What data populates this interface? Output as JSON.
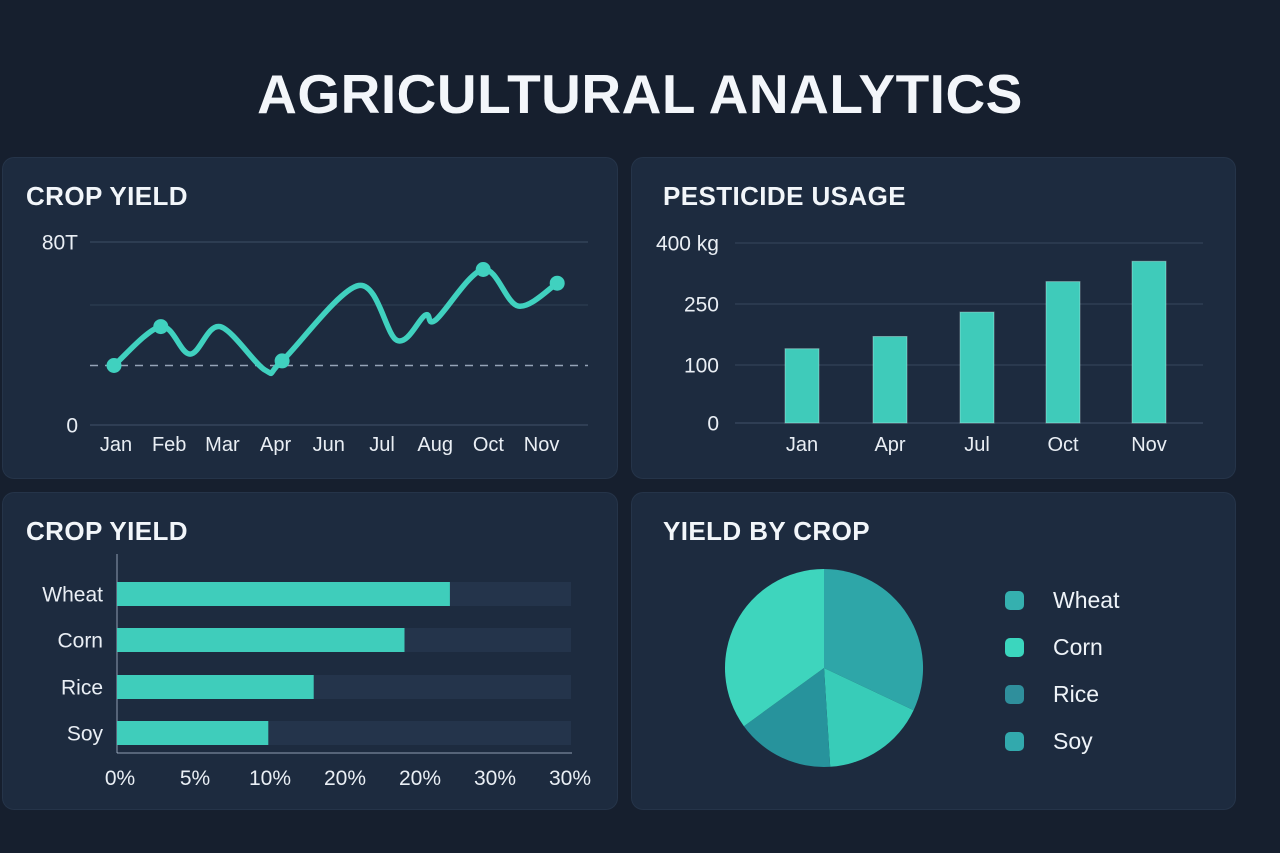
{
  "page": {
    "title": "AGRICULTURAL ANALYTICS",
    "background": "#161f2e",
    "card_background": "#1d2b3f",
    "accent_teal": "#3fcdbb",
    "text_color": "#eef2f7"
  },
  "chart_data": [
    {
      "type": "line",
      "title": "CROP YIELD",
      "unit": "T",
      "ylim": [
        0,
        80
      ],
      "y_tick_labels": [
        "80T",
        "0"
      ],
      "x_tick_labels": [
        "Jan",
        "Feb",
        "Mar",
        "Apr",
        "Jun",
        "Jul",
        "Aug",
        "Oct",
        "Nov"
      ],
      "reference_line_value": 26,
      "line_color": "#40d1bf",
      "grid": "horizontal",
      "points": [
        {
          "x": 0,
          "value": 26,
          "dot": true,
          "month": "Jan"
        },
        {
          "x": 0.88,
          "value": 43,
          "dot": true,
          "month": "Feb"
        },
        {
          "x": 1.43,
          "value": 31,
          "dot": false
        },
        {
          "x": 1.99,
          "value": 43,
          "dot": false,
          "month": "Mar"
        },
        {
          "x": 2.84,
          "value": 24,
          "dot": false
        },
        {
          "x": 3.16,
          "value": 28,
          "dot": true,
          "month": "Apr"
        },
        {
          "x": 4.6,
          "value": 61,
          "dot": false
        },
        {
          "x": 5.32,
          "value": 37,
          "dot": false
        },
        {
          "x": 5.85,
          "value": 48,
          "dot": false
        },
        {
          "x": 6.05,
          "value": 46,
          "dot": false
        },
        {
          "x": 6.94,
          "value": 68,
          "dot": true,
          "month": "Oct"
        },
        {
          "x": 7.6,
          "value": 52,
          "dot": false
        },
        {
          "x": 8.33,
          "value": 62,
          "dot": true,
          "month": "Nov"
        }
      ]
    },
    {
      "type": "bar",
      "title": "PESTICIDE USAGE",
      "unit": "kg",
      "categories": [
        "Jan",
        "Apr",
        "Jul",
        "Oct",
        "Nov"
      ],
      "values": [
        140,
        170,
        230,
        305,
        355
      ],
      "y_ticks": [
        {
          "label": "400 kg",
          "value": 400
        },
        {
          "label": "250",
          "value": 250
        },
        {
          "label": "100",
          "value": 100
        },
        {
          "label": "0",
          "value": 0
        }
      ],
      "bar_color": "#3fcbba",
      "grid": "horizontal"
    },
    {
      "type": "hbar",
      "title": "CROP YIELD",
      "unit": "%",
      "categories": [
        "Wheat",
        "Corn",
        "Rice",
        "Soy"
      ],
      "values": [
        22,
        19,
        13,
        10
      ],
      "xmax": 30,
      "x_tick_labels": [
        "0%",
        "5%",
        "10%",
        "20%",
        "20%",
        "30%",
        "30%"
      ],
      "bar_color": "#3fcdbb"
    },
    {
      "type": "pie",
      "title": "YIELD BY CROP",
      "labels": [
        "Wheat",
        "Corn",
        "Rice",
        "Soy"
      ],
      "values": [
        32,
        17,
        16,
        35
      ],
      "unit": "%",
      "slice_colors": [
        "#2ea6a8",
        "#38ccb8",
        "#27939c",
        "#3ed5bd"
      ],
      "legend": [
        {
          "label": "Wheat",
          "color": "#35b0af"
        },
        {
          "label": "Corn",
          "color": "#3bd6be"
        },
        {
          "label": "Rice",
          "color": "#2f8f9c"
        },
        {
          "label": "Soy",
          "color": "#32a9ad"
        }
      ],
      "legend_position": "right",
      "start_angle_deg": 0
    }
  ]
}
